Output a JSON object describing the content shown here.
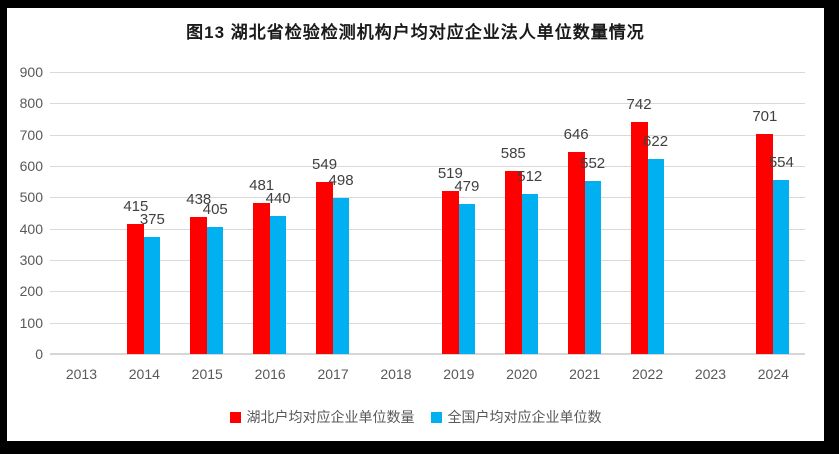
{
  "frame": {
    "background_color": "#000000",
    "chart_background_color": "#ffffff"
  },
  "chart_data": {
    "type": "bar",
    "title": "图13  湖北省检验检测机构户均对应企业法人单位数量情况",
    "categories": [
      "2013",
      "2014",
      "2015",
      "2016",
      "2017",
      "2018",
      "2019",
      "2020",
      "2021",
      "2022",
      "2023",
      "2024"
    ],
    "series": [
      {
        "key": "hubei",
        "name": "湖北户均对应企业单位数量",
        "color": "#FF0000",
        "values": [
          null,
          415,
          438,
          481,
          549,
          null,
          519,
          585,
          646,
          742,
          null,
          701
        ]
      },
      {
        "key": "national",
        "name": "全国户均对应企业单位数",
        "color": "#00B0F0",
        "values": [
          null,
          375,
          405,
          440,
          498,
          null,
          479,
          512,
          552,
          622,
          null,
          554
        ]
      }
    ],
    "ylim": [
      0,
      900
    ],
    "yticks": [
      0,
      100,
      200,
      300,
      400,
      500,
      600,
      700,
      800,
      900
    ],
    "grid": true,
    "legend_position": "bottom",
    "colors": {
      "gridline": "#D9D9D9",
      "axis_text": "#595959",
      "data_label_text": "#404040",
      "title_text": "#1A1A1A"
    }
  }
}
